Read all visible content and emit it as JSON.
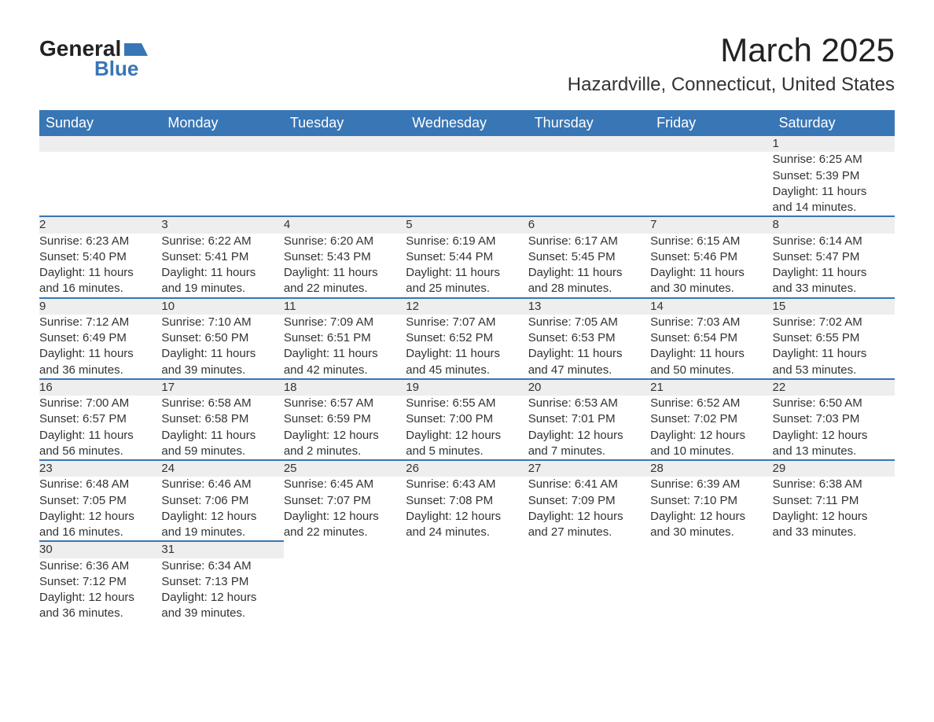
{
  "logo": {
    "word1": "General",
    "word2": "Blue"
  },
  "title": "March 2025",
  "location": "Hazardville, Connecticut, United States",
  "colors": {
    "header_bg": "#3876b5",
    "header_text": "#ffffff",
    "daynum_bg": "#eeeeee",
    "border": "#3876b5",
    "text": "#333333",
    "logo_accent": "#3876b5"
  },
  "day_headers": [
    "Sunday",
    "Monday",
    "Tuesday",
    "Wednesday",
    "Thursday",
    "Friday",
    "Saturday"
  ],
  "weeks": [
    [
      null,
      null,
      null,
      null,
      null,
      null,
      {
        "n": "1",
        "sr": "Sunrise: 6:25 AM",
        "ss": "Sunset: 5:39 PM",
        "d1": "Daylight: 11 hours",
        "d2": "and 14 minutes."
      }
    ],
    [
      {
        "n": "2",
        "sr": "Sunrise: 6:23 AM",
        "ss": "Sunset: 5:40 PM",
        "d1": "Daylight: 11 hours",
        "d2": "and 16 minutes."
      },
      {
        "n": "3",
        "sr": "Sunrise: 6:22 AM",
        "ss": "Sunset: 5:41 PM",
        "d1": "Daylight: 11 hours",
        "d2": "and 19 minutes."
      },
      {
        "n": "4",
        "sr": "Sunrise: 6:20 AM",
        "ss": "Sunset: 5:43 PM",
        "d1": "Daylight: 11 hours",
        "d2": "and 22 minutes."
      },
      {
        "n": "5",
        "sr": "Sunrise: 6:19 AM",
        "ss": "Sunset: 5:44 PM",
        "d1": "Daylight: 11 hours",
        "d2": "and 25 minutes."
      },
      {
        "n": "6",
        "sr": "Sunrise: 6:17 AM",
        "ss": "Sunset: 5:45 PM",
        "d1": "Daylight: 11 hours",
        "d2": "and 28 minutes."
      },
      {
        "n": "7",
        "sr": "Sunrise: 6:15 AM",
        "ss": "Sunset: 5:46 PM",
        "d1": "Daylight: 11 hours",
        "d2": "and 30 minutes."
      },
      {
        "n": "8",
        "sr": "Sunrise: 6:14 AM",
        "ss": "Sunset: 5:47 PM",
        "d1": "Daylight: 11 hours",
        "d2": "and 33 minutes."
      }
    ],
    [
      {
        "n": "9",
        "sr": "Sunrise: 7:12 AM",
        "ss": "Sunset: 6:49 PM",
        "d1": "Daylight: 11 hours",
        "d2": "and 36 minutes."
      },
      {
        "n": "10",
        "sr": "Sunrise: 7:10 AM",
        "ss": "Sunset: 6:50 PM",
        "d1": "Daylight: 11 hours",
        "d2": "and 39 minutes."
      },
      {
        "n": "11",
        "sr": "Sunrise: 7:09 AM",
        "ss": "Sunset: 6:51 PM",
        "d1": "Daylight: 11 hours",
        "d2": "and 42 minutes."
      },
      {
        "n": "12",
        "sr": "Sunrise: 7:07 AM",
        "ss": "Sunset: 6:52 PM",
        "d1": "Daylight: 11 hours",
        "d2": "and 45 minutes."
      },
      {
        "n": "13",
        "sr": "Sunrise: 7:05 AM",
        "ss": "Sunset: 6:53 PM",
        "d1": "Daylight: 11 hours",
        "d2": "and 47 minutes."
      },
      {
        "n": "14",
        "sr": "Sunrise: 7:03 AM",
        "ss": "Sunset: 6:54 PM",
        "d1": "Daylight: 11 hours",
        "d2": "and 50 minutes."
      },
      {
        "n": "15",
        "sr": "Sunrise: 7:02 AM",
        "ss": "Sunset: 6:55 PM",
        "d1": "Daylight: 11 hours",
        "d2": "and 53 minutes."
      }
    ],
    [
      {
        "n": "16",
        "sr": "Sunrise: 7:00 AM",
        "ss": "Sunset: 6:57 PM",
        "d1": "Daylight: 11 hours",
        "d2": "and 56 minutes."
      },
      {
        "n": "17",
        "sr": "Sunrise: 6:58 AM",
        "ss": "Sunset: 6:58 PM",
        "d1": "Daylight: 11 hours",
        "d2": "and 59 minutes."
      },
      {
        "n": "18",
        "sr": "Sunrise: 6:57 AM",
        "ss": "Sunset: 6:59 PM",
        "d1": "Daylight: 12 hours",
        "d2": "and 2 minutes."
      },
      {
        "n": "19",
        "sr": "Sunrise: 6:55 AM",
        "ss": "Sunset: 7:00 PM",
        "d1": "Daylight: 12 hours",
        "d2": "and 5 minutes."
      },
      {
        "n": "20",
        "sr": "Sunrise: 6:53 AM",
        "ss": "Sunset: 7:01 PM",
        "d1": "Daylight: 12 hours",
        "d2": "and 7 minutes."
      },
      {
        "n": "21",
        "sr": "Sunrise: 6:52 AM",
        "ss": "Sunset: 7:02 PM",
        "d1": "Daylight: 12 hours",
        "d2": "and 10 minutes."
      },
      {
        "n": "22",
        "sr": "Sunrise: 6:50 AM",
        "ss": "Sunset: 7:03 PM",
        "d1": "Daylight: 12 hours",
        "d2": "and 13 minutes."
      }
    ],
    [
      {
        "n": "23",
        "sr": "Sunrise: 6:48 AM",
        "ss": "Sunset: 7:05 PM",
        "d1": "Daylight: 12 hours",
        "d2": "and 16 minutes."
      },
      {
        "n": "24",
        "sr": "Sunrise: 6:46 AM",
        "ss": "Sunset: 7:06 PM",
        "d1": "Daylight: 12 hours",
        "d2": "and 19 minutes."
      },
      {
        "n": "25",
        "sr": "Sunrise: 6:45 AM",
        "ss": "Sunset: 7:07 PM",
        "d1": "Daylight: 12 hours",
        "d2": "and 22 minutes."
      },
      {
        "n": "26",
        "sr": "Sunrise: 6:43 AM",
        "ss": "Sunset: 7:08 PM",
        "d1": "Daylight: 12 hours",
        "d2": "and 24 minutes."
      },
      {
        "n": "27",
        "sr": "Sunrise: 6:41 AM",
        "ss": "Sunset: 7:09 PM",
        "d1": "Daylight: 12 hours",
        "d2": "and 27 minutes."
      },
      {
        "n": "28",
        "sr": "Sunrise: 6:39 AM",
        "ss": "Sunset: 7:10 PM",
        "d1": "Daylight: 12 hours",
        "d2": "and 30 minutes."
      },
      {
        "n": "29",
        "sr": "Sunrise: 6:38 AM",
        "ss": "Sunset: 7:11 PM",
        "d1": "Daylight: 12 hours",
        "d2": "and 33 minutes."
      }
    ],
    [
      {
        "n": "30",
        "sr": "Sunrise: 6:36 AM",
        "ss": "Sunset: 7:12 PM",
        "d1": "Daylight: 12 hours",
        "d2": "and 36 minutes."
      },
      {
        "n": "31",
        "sr": "Sunrise: 6:34 AM",
        "ss": "Sunset: 7:13 PM",
        "d1": "Daylight: 12 hours",
        "d2": "and 39 minutes."
      },
      null,
      null,
      null,
      null,
      null
    ]
  ]
}
